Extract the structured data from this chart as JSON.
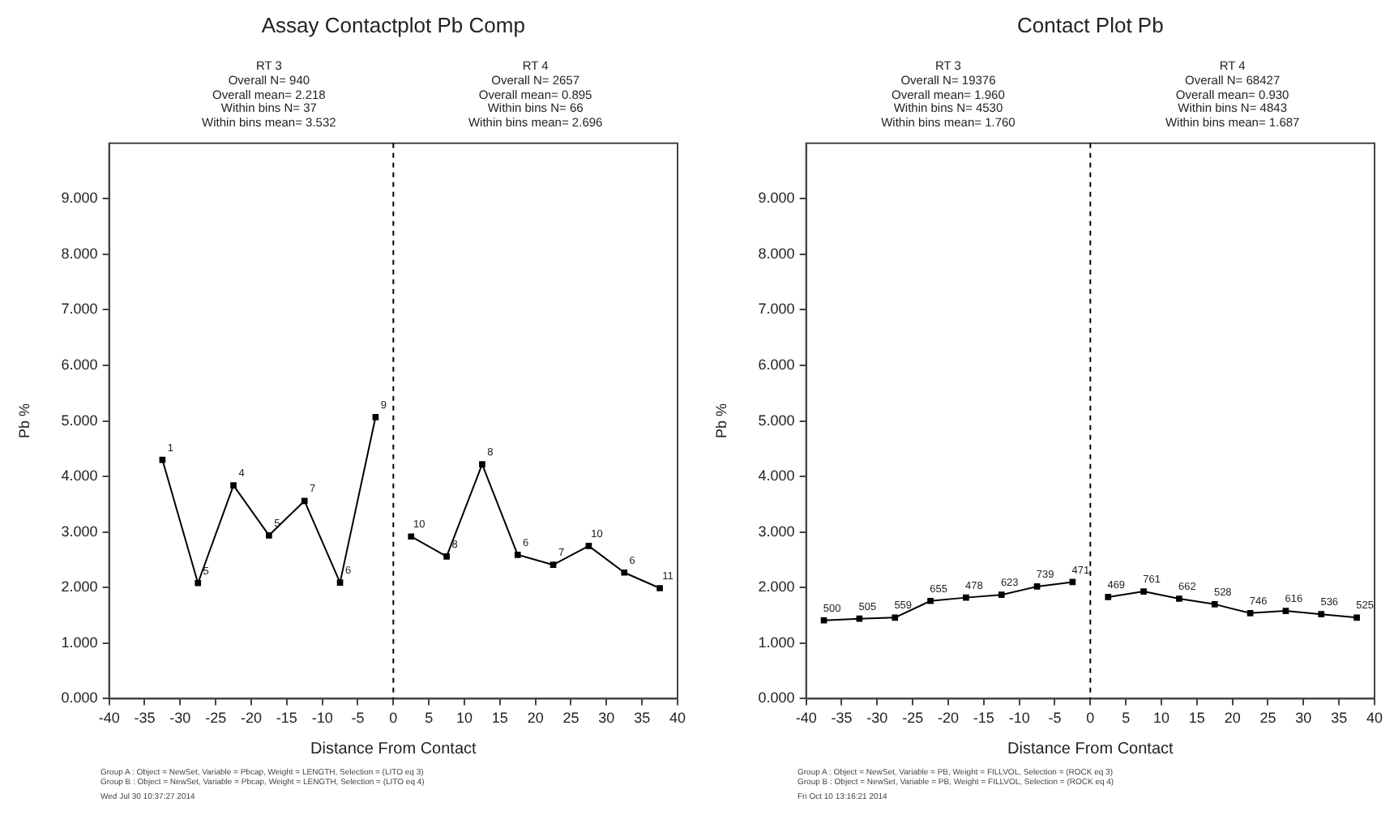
{
  "chart_data": [
    {
      "type": "line",
      "title": "Assay Contactplot Pb Comp",
      "xlabel": "Distance From Contact",
      "ylabel": "Pb %",
      "xlim": [
        -40,
        40
      ],
      "xticks": [
        -40,
        -35,
        -30,
        -25,
        -20,
        -15,
        -10,
        -5,
        0,
        5,
        10,
        15,
        20,
        25,
        30,
        35,
        40
      ],
      "ylim": [
        0,
        10
      ],
      "yticks": [
        {
          "value": 0,
          "label": "0.000"
        },
        {
          "value": 1,
          "label": "1.000"
        },
        {
          "value": 2,
          "label": "2.000"
        },
        {
          "value": 3,
          "label": "3.000"
        },
        {
          "value": 4,
          "label": "4.000"
        },
        {
          "value": 5,
          "label": "5.000"
        },
        {
          "value": 6,
          "label": "6.000"
        },
        {
          "value": 7,
          "label": "7.000"
        },
        {
          "value": 8,
          "label": "8.000"
        },
        {
          "value": 9,
          "label": "9.000"
        }
      ],
      "grid": false,
      "legend": false,
      "marker": "square",
      "line_style": "solid",
      "ref_lines": [
        {
          "axis": "x",
          "value": 0,
          "line_style": "dashed",
          "color": "#000000"
        }
      ],
      "series": [
        {
          "color": "#000000",
          "x": [
            -32.5,
            -27.5,
            -22.5,
            -17.5,
            -12.5,
            -7.5,
            -2.5
          ],
          "values": [
            4.3,
            2.08,
            3.84,
            2.94,
            3.56,
            2.09,
            5.07
          ]
        },
        {
          "color": "#000000",
          "x": [
            2.5,
            7.5,
            12.5,
            17.5,
            22.5,
            27.5,
            32.5,
            37.5
          ],
          "values": [
            2.92,
            2.56,
            4.22,
            2.59,
            2.41,
            2.75,
            2.27,
            1.99
          ]
        }
      ],
      "annotations": [
        "RT 3",
        "Overall N= 940",
        "Overall mean= 2.218",
        "Within bins N= 37",
        "Within bins mean= 3.532",
        "RT 4",
        "Overall N= 2657",
        "Overall mean= 0.895",
        "Within bins N= 66",
        "Within bins mean= 2.696",
        "Group A : Object = NewSet, Variable = Pbcap, Weight = LENGTH, Selection = (LITO eq 3)",
        "Group B : Object = NewSet, Variable = Pbcap, Weight = LENGTH, Selection = (LITO eq 4)",
        "Wed Jul 30 10:37:27 2014",
        {
          "text": "1",
          "x": -32.5,
          "y": 4.3
        },
        {
          "text": "5",
          "x": -27.5,
          "y": 2.08
        },
        {
          "text": "4",
          "x": -22.5,
          "y": 3.84
        },
        {
          "text": "5",
          "x": -17.5,
          "y": 2.94
        },
        {
          "text": "7",
          "x": -12.5,
          "y": 3.56
        },
        {
          "text": "6",
          "x": -7.5,
          "y": 2.09
        },
        {
          "text": "9",
          "x": -2.5,
          "y": 5.07
        },
        {
          "text": "10",
          "x": 2.5,
          "y": 2.92
        },
        {
          "text": "8",
          "x": 7.5,
          "y": 2.56
        },
        {
          "text": "8",
          "x": 12.5,
          "y": 4.22
        },
        {
          "text": "6",
          "x": 17.5,
          "y": 2.59
        },
        {
          "text": "7",
          "x": 22.5,
          "y": 2.41
        },
        {
          "text": "10",
          "x": 27.5,
          "y": 2.75
        },
        {
          "text": "6",
          "x": 32.5,
          "y": 2.27
        },
        {
          "text": "11",
          "x": 37.5,
          "y": 1.99
        }
      ]
    },
    {
      "type": "line",
      "title": "Contact Plot Pb",
      "xlabel": "Distance From Contact",
      "ylabel": "Pb %",
      "xlim": [
        -40,
        40
      ],
      "xticks": [
        -40,
        -35,
        -30,
        -25,
        -20,
        -15,
        -10,
        -5,
        0,
        5,
        10,
        15,
        20,
        25,
        30,
        35,
        40
      ],
      "ylim": [
        0,
        10
      ],
      "yticks": [
        {
          "value": 0,
          "label": "0.000"
        },
        {
          "value": 1,
          "label": "1.000"
        },
        {
          "value": 2,
          "label": "2.000"
        },
        {
          "value": 3,
          "label": "3.000"
        },
        {
          "value": 4,
          "label": "4.000"
        },
        {
          "value": 5,
          "label": "5.000"
        },
        {
          "value": 6,
          "label": "6.000"
        },
        {
          "value": 7,
          "label": "7.000"
        },
        {
          "value": 8,
          "label": "8.000"
        },
        {
          "value": 9,
          "label": "9.000"
        }
      ],
      "grid": false,
      "legend": false,
      "marker": "square",
      "line_style": "solid",
      "ref_lines": [
        {
          "axis": "x",
          "value": 0,
          "line_style": "dashed",
          "color": "#000000"
        }
      ],
      "series": [
        {
          "color": "#000000",
          "x": [
            -37.5,
            -32.5,
            -27.5,
            -22.5,
            -17.5,
            -12.5,
            -7.5,
            -2.5
          ],
          "values": [
            1.41,
            1.44,
            1.46,
            1.76,
            1.82,
            1.87,
            2.02,
            2.1
          ]
        },
        {
          "color": "#000000",
          "x": [
            2.5,
            7.5,
            12.5,
            17.5,
            22.5,
            27.5,
            32.5,
            37.5
          ],
          "values": [
            1.83,
            1.93,
            1.8,
            1.7,
            1.54,
            1.58,
            1.52,
            1.46
          ]
        }
      ],
      "annotations": [
        "RT 3",
        "Overall N= 19376",
        "Overall mean= 1.960",
        "Within bins N= 4530",
        "Within bins mean= 1.760",
        "RT 4",
        "Overall N= 68427",
        "Overall mean= 0.930",
        "Within bins N= 4843",
        "Within bins mean= 1.687",
        "Group A : Object = NewSet, Variable = PB, Weight = FILLVOL, Selection = (ROCK eq 3)",
        "Group B : Object = NewSet, Variable = PB, Weight = FILLVOL, Selection = (ROCK eq 4)",
        "Fri Oct 10 13:16:21 2014",
        {
          "text": "500",
          "x": -37.5,
          "y": 1.41
        },
        {
          "text": "505",
          "x": -32.5,
          "y": 1.44
        },
        {
          "text": "559",
          "x": -27.5,
          "y": 1.46
        },
        {
          "text": "655",
          "x": -22.5,
          "y": 1.76
        },
        {
          "text": "478",
          "x": -17.5,
          "y": 1.82
        },
        {
          "text": "623",
          "x": -12.5,
          "y": 1.87
        },
        {
          "text": "739",
          "x": -7.5,
          "y": 2.02
        },
        {
          "text": "471",
          "x": -2.5,
          "y": 2.1
        },
        {
          "text": "469",
          "x": 2.5,
          "y": 1.83
        },
        {
          "text": "761",
          "x": 7.5,
          "y": 1.93
        },
        {
          "text": "662",
          "x": 12.5,
          "y": 1.8
        },
        {
          "text": "528",
          "x": 17.5,
          "y": 1.7
        },
        {
          "text": "746",
          "x": 22.5,
          "y": 1.54
        },
        {
          "text": "616",
          "x": 27.5,
          "y": 1.58
        },
        {
          "text": "536",
          "x": 32.5,
          "y": 1.52
        },
        {
          "text": "525",
          "x": 37.5,
          "y": 1.46
        }
      ]
    }
  ]
}
